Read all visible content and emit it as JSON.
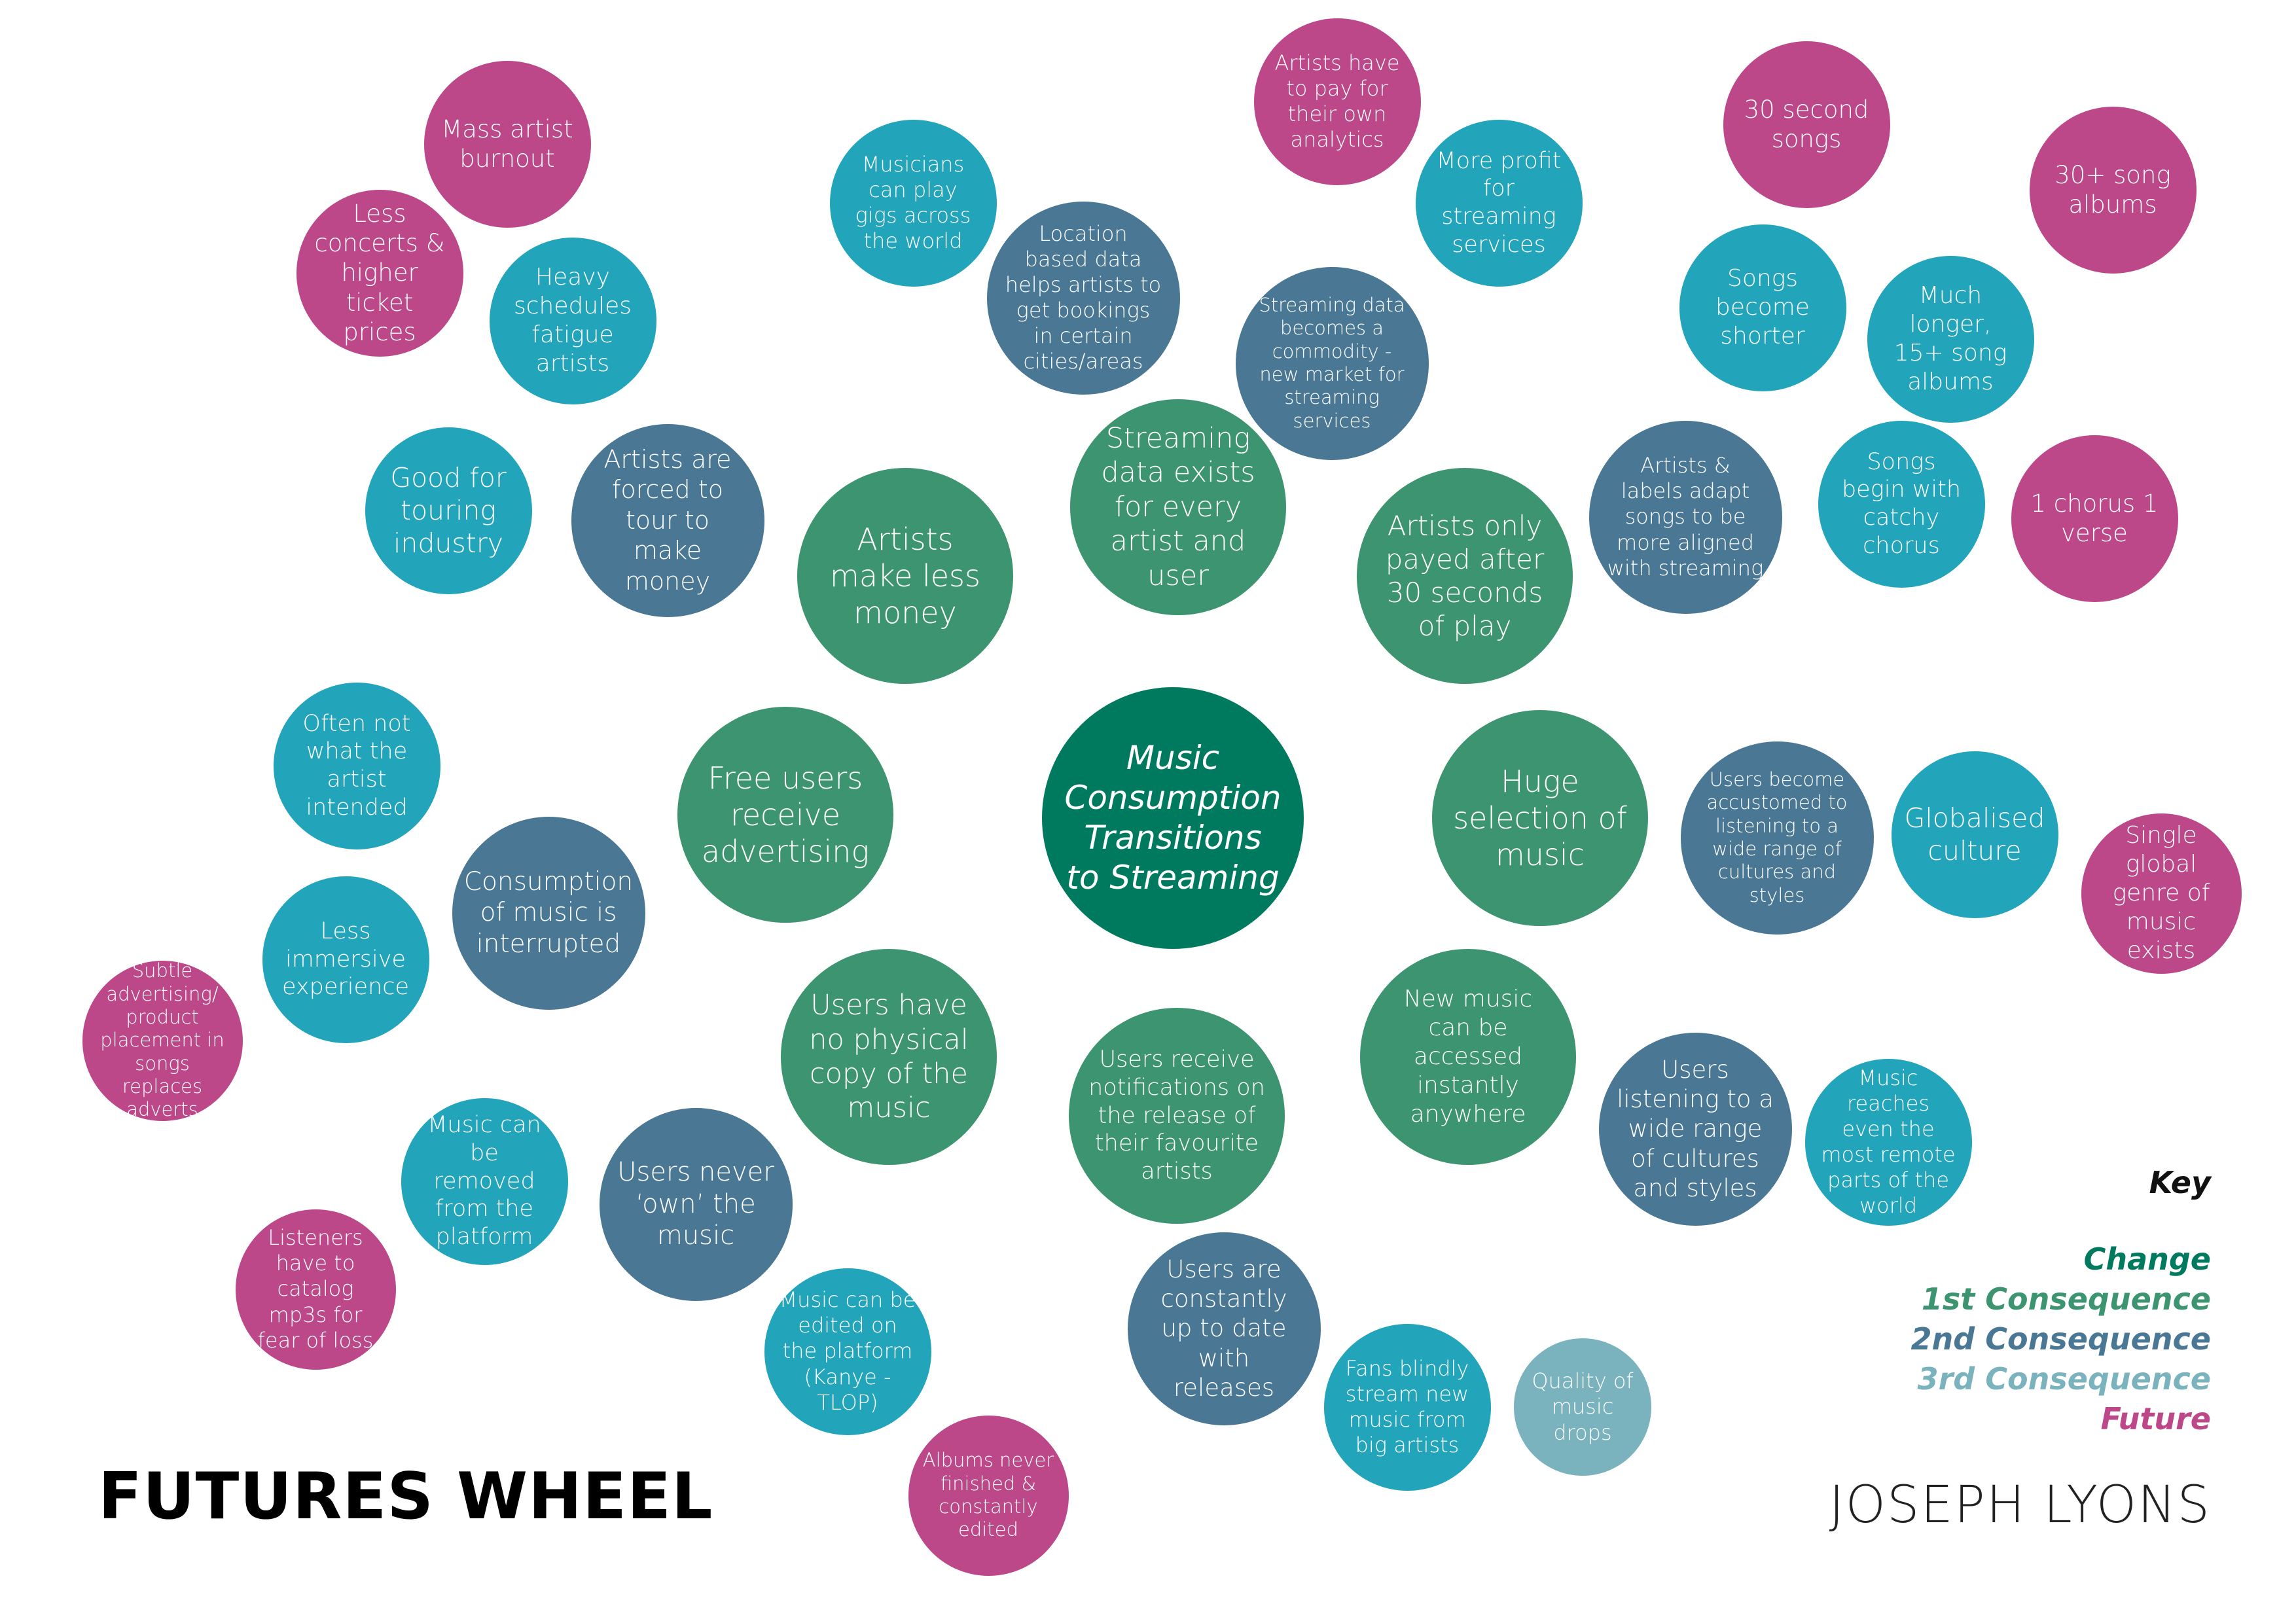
{
  "title": "FUTURES WHEEL",
  "author": "JOSEPH LYONS",
  "colors": {
    "change": "#007A5E",
    "first": "#3D9470",
    "second": "#4A7894",
    "third": "#22A4BA",
    "third_light": "#7AB3BD",
    "future": "#BD4889"
  },
  "key": {
    "title": "Key",
    "items": [
      {
        "label": "Change",
        "level": "change"
      },
      {
        "label": "1st Consequence",
        "level": "first"
      },
      {
        "label": "2nd Consequence",
        "level": "second"
      },
      {
        "label": "3rd Consequence",
        "level": "third_light"
      },
      {
        "label": "Future",
        "level": "future"
      }
    ]
  },
  "nodes": [
    {
      "id": "center",
      "level": "change",
      "text": "Music Consumption Transitions to Streaming"
    },
    {
      "id": "artists-less-money",
      "level": "first",
      "text": "Artists make less money"
    },
    {
      "id": "streaming-data-exists",
      "level": "first",
      "text": "Streaming data exists for every artist and user"
    },
    {
      "id": "paid-after-30",
      "level": "first",
      "text": "Artists only payed after 30 seconds of play"
    },
    {
      "id": "free-users-ads",
      "level": "first",
      "text": "Free users receive advertising"
    },
    {
      "id": "huge-selection",
      "level": "first",
      "text": "Huge selection of music"
    },
    {
      "id": "no-physical-copy",
      "level": "first",
      "text": "Users have no physical copy of the music"
    },
    {
      "id": "notifications",
      "level": "first",
      "text": "Users receive notifications on the release of their favourite artists"
    },
    {
      "id": "instant-access",
      "level": "first",
      "text": "New music can be accessed instantly anywhere"
    },
    {
      "id": "forced-tour",
      "level": "second",
      "text": "Artists are forced to tour to make money"
    },
    {
      "id": "location-data",
      "level": "second",
      "text": "Location based data helps artists to get bookings in certain cities/areas"
    },
    {
      "id": "data-commodity",
      "level": "second",
      "text": "Streaming data becomes a commodity - new market for streaming services"
    },
    {
      "id": "labels-adapt",
      "level": "second",
      "text": "Artists & labels adapt songs to be more aligned with streaming"
    },
    {
      "id": "consumption-interrupted",
      "level": "second",
      "text": "Consumption of music is interrupted"
    },
    {
      "id": "accustomed-cultures",
      "level": "second",
      "text": "Users become accustomed to listening to a wide range of cultures and styles"
    },
    {
      "id": "never-own",
      "level": "second",
      "text": "Users never ‘own’ the music"
    },
    {
      "id": "up-to-date",
      "level": "second",
      "text": "Users are constantly up to date with releases"
    },
    {
      "id": "wide-range-listening",
      "level": "second",
      "text": "Users listening to a wide range of cultures and styles"
    },
    {
      "id": "good-touring",
      "level": "third",
      "text": "Good for touring industry"
    },
    {
      "id": "heavy-schedules",
      "level": "third",
      "text": "Heavy schedules fatigue artists"
    },
    {
      "id": "gigs-world",
      "level": "third",
      "text": "Musicians can play gigs across the world"
    },
    {
      "id": "more-profit",
      "level": "third",
      "text": "More profit for streaming services"
    },
    {
      "id": "songs-shorter",
      "level": "third",
      "text": "Songs become shorter"
    },
    {
      "id": "longer-albums",
      "level": "third",
      "text": "Much longer, 15+ song albums"
    },
    {
      "id": "catchy-chorus",
      "level": "third",
      "text": "Songs begin with catchy chorus"
    },
    {
      "id": "often-not-intended",
      "level": "third",
      "text": "Often not what the artist intended"
    },
    {
      "id": "less-immersive",
      "level": "third",
      "text": "Less immersive experience"
    },
    {
      "id": "globalised",
      "level": "third",
      "text": "Globalised culture"
    },
    {
      "id": "music-removed",
      "level": "third",
      "text": "Music can be removed from the platform"
    },
    {
      "id": "music-edited",
      "level": "third",
      "text": "Music can be edited on the platform (Kanye - TLOP)"
    },
    {
      "id": "fans-blindly",
      "level": "third",
      "text": "Fans blindly stream new music from big artists"
    },
    {
      "id": "remote-parts",
      "level": "third",
      "text": "Music reaches even the most remote parts of the world"
    },
    {
      "id": "quality-drops",
      "level": "third_light",
      "text": "Quality of music drops"
    },
    {
      "id": "mass-burnout",
      "level": "future",
      "text": "Mass artist burnout"
    },
    {
      "id": "less-concerts",
      "level": "future",
      "text": "Less concerts & higher ticket prices"
    },
    {
      "id": "pay-analytics",
      "level": "future",
      "text": "Artists have to pay for their own analytics"
    },
    {
      "id": "thirty-second-songs",
      "level": "future",
      "text": "30 second songs"
    },
    {
      "id": "thirty-plus-albums",
      "level": "future",
      "text": "30+ song albums"
    },
    {
      "id": "chorus-verse",
      "level": "future",
      "text": "1 chorus 1 verse"
    },
    {
      "id": "subtle-advertising",
      "level": "future",
      "text": "Subtle advertising/ product placement in songs replaces adverts"
    },
    {
      "id": "single-genre",
      "level": "future",
      "text": "Single global genre of music exists"
    },
    {
      "id": "catalog-mp3s",
      "level": "future",
      "text": "Listeners have to catalog mp3s for fear of loss"
    },
    {
      "id": "albums-never-finished",
      "level": "future",
      "text": "Albums never finished & constantly edited"
    }
  ]
}
